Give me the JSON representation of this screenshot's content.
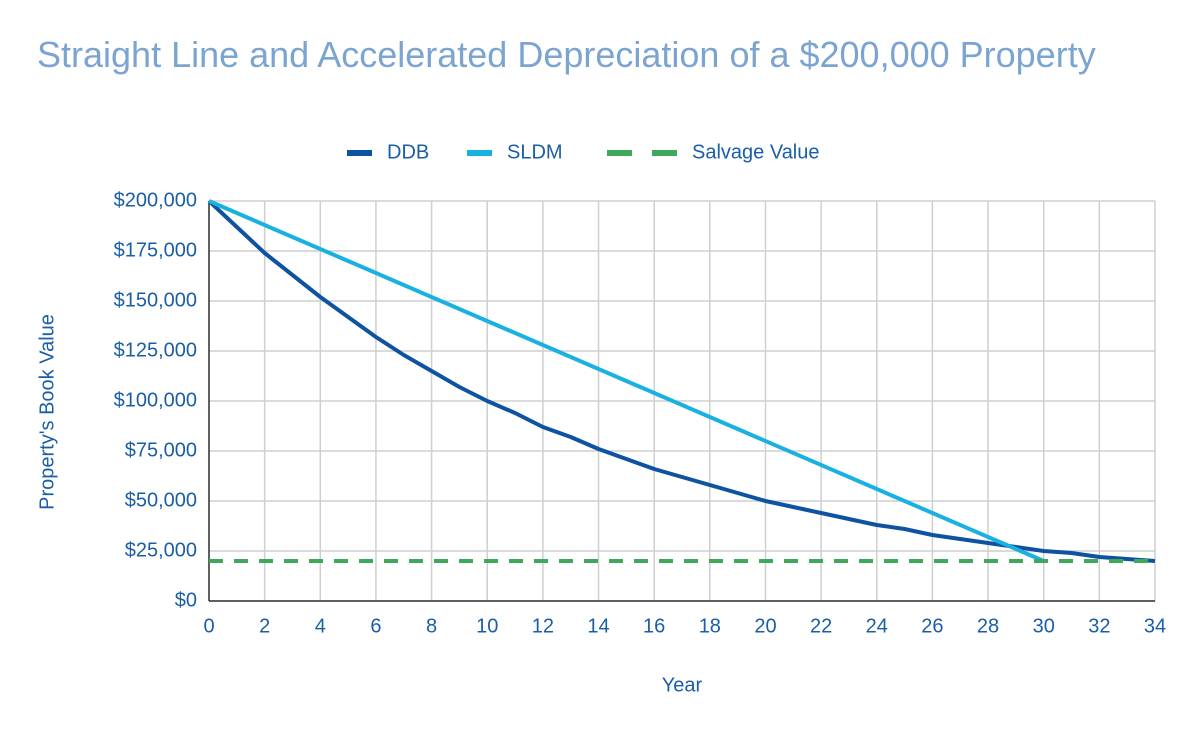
{
  "chart_data": {
    "type": "line",
    "title": "Straight Line and Accelerated Depreciation of a $200,000 Property",
    "x_label": "Year",
    "y_label": "Property's Book Value",
    "xlim": [
      0,
      34
    ],
    "xticks": [
      0,
      2,
      4,
      6,
      8,
      10,
      12,
      14,
      16,
      18,
      20,
      22,
      24,
      26,
      28,
      30,
      32,
      34
    ],
    "ylim": [
      0,
      200000
    ],
    "yticks": [
      {
        "value": 0,
        "label": "$0"
      },
      {
        "value": 25000,
        "label": "$25,000"
      },
      {
        "value": 50000,
        "label": "$50,000"
      },
      {
        "value": 75000,
        "label": "$75,000"
      },
      {
        "value": 100000,
        "label": "$100,000"
      },
      {
        "value": 125000,
        "label": "$125,000"
      },
      {
        "value": 150000,
        "label": "$150,000"
      },
      {
        "value": 175000,
        "label": "$175,000"
      },
      {
        "value": 200000,
        "label": "$200,000"
      }
    ],
    "grid": true,
    "legend": "top",
    "series": [
      {
        "name": "DDB",
        "color": "#0e52a2",
        "line_style": "solid",
        "x": [
          0,
          1,
          2,
          3,
          4,
          5,
          6,
          7,
          8,
          9,
          10,
          11,
          12,
          13,
          14,
          15,
          16,
          17,
          18,
          19,
          20,
          21,
          22,
          23,
          24,
          25,
          26,
          27,
          28,
          29,
          30,
          31,
          32,
          33,
          34
        ],
        "values": [
          200000,
          187000,
          174000,
          163000,
          152000,
          142000,
          132000,
          123000,
          115000,
          107000,
          100000,
          94000,
          87000,
          82000,
          76000,
          71000,
          66000,
          62000,
          58000,
          54000,
          50000,
          47000,
          44000,
          41000,
          38000,
          36000,
          33000,
          31000,
          29000,
          27000,
          25000,
          24000,
          22000,
          21000,
          20000
        ]
      },
      {
        "name": "SLDM",
        "color": "#19b1e0",
        "line_style": "solid",
        "x": [
          0,
          30
        ],
        "values": [
          200000,
          20000
        ]
      },
      {
        "name": "Salvage Value",
        "color": "#3fa85a",
        "line_style": "dashed",
        "x": [
          0,
          34
        ],
        "values": [
          20000,
          20000
        ]
      }
    ]
  }
}
